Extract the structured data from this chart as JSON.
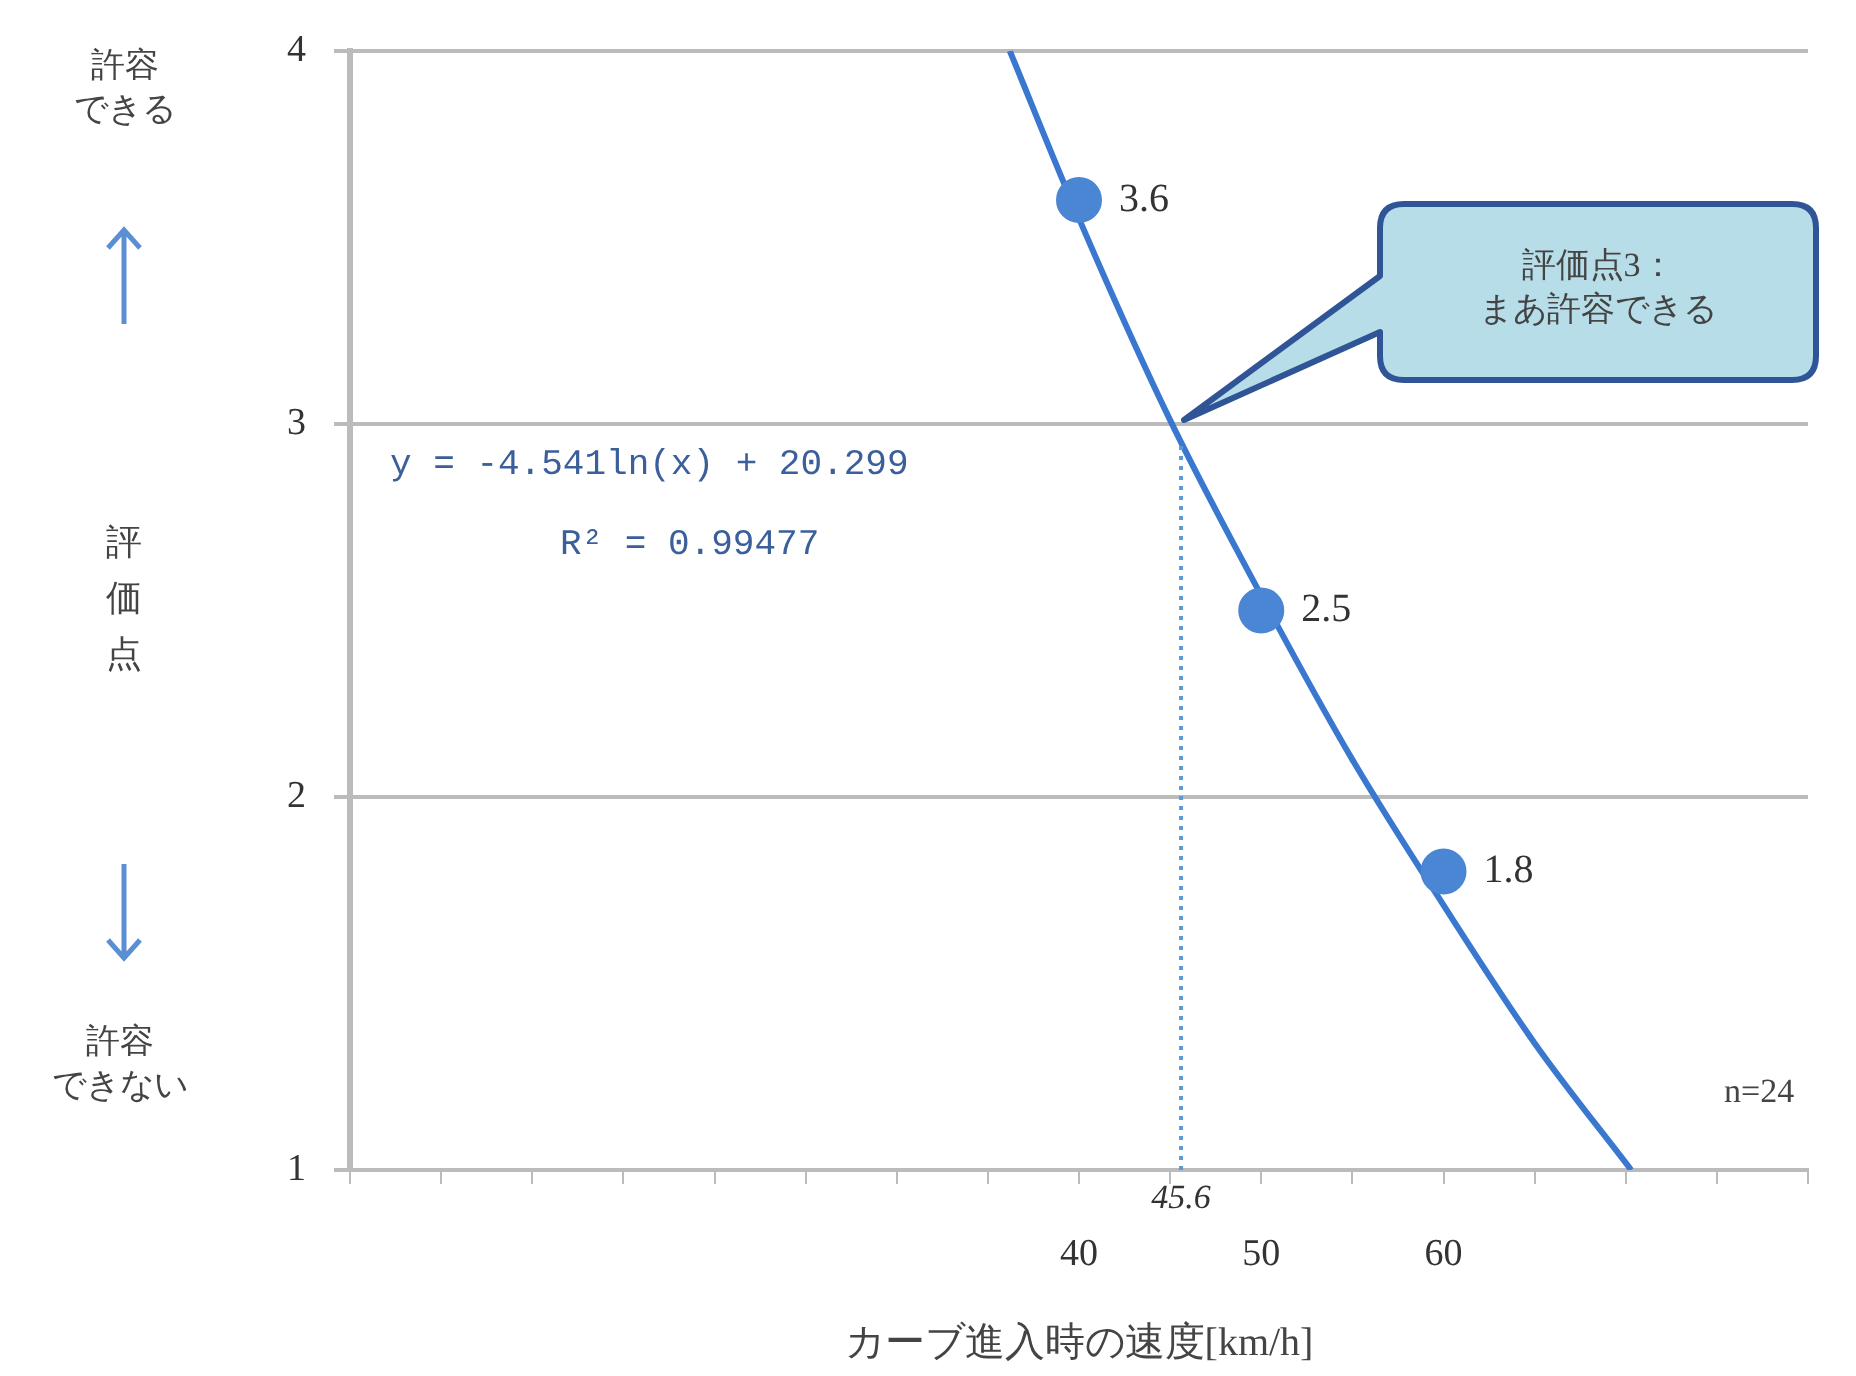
{
  "chart_data": {
    "type": "scatter",
    "xlabel": "カーブ進入時の速度[km/h]",
    "ylabel": "評価点",
    "xlim": [
      0,
      80
    ],
    "xticks": [
      {
        "value": 0,
        "label": null
      },
      {
        "value": 5,
        "label": null
      },
      {
        "value": 10,
        "label": null
      },
      {
        "value": 15,
        "label": null
      },
      {
        "value": 20,
        "label": null
      },
      {
        "value": 25,
        "label": null
      },
      {
        "value": 30,
        "label": null
      },
      {
        "value": 35,
        "label": null
      },
      40,
      {
        "value": 45,
        "label": null
      },
      50,
      {
        "value": 55,
        "label": null
      },
      60,
      {
        "value": 65,
        "label": null
      },
      {
        "value": 70,
        "label": null
      },
      {
        "value": 75,
        "label": null
      },
      {
        "value": 80,
        "label": null
      }
    ],
    "ylim": [
      1,
      4
    ],
    "yticks": [
      1,
      2,
      3,
      4
    ],
    "grid": "y",
    "legend": false,
    "series": [
      {
        "marker": "circle",
        "color": "#4a86d4",
        "x": [
          40,
          50,
          60
        ],
        "values": [
          3.6,
          2.5,
          1.8
        ],
        "value_labels": [
          "3.6",
          "2.5",
          "1.8"
        ]
      },
      {
        "type": "line",
        "marker": "none",
        "color": "#3a78d0",
        "x": [
          36.2,
          40,
          45,
          50,
          55,
          60,
          65,
          70.3
        ],
        "values": [
          4.0,
          3.55,
          3.01,
          2.54,
          2.1,
          1.71,
          1.34,
          1.0
        ]
      }
    ],
    "ref_lines": [
      {
        "axis": "x",
        "value": 45.6,
        "label": "45.6",
        "color": "#5b9bd5",
        "line_style": "dotted"
      }
    ],
    "annotations": [
      "許容できる",
      "許容できない",
      "y = -4.541ln(x) + 20.299",
      "R² = 0.99477",
      "n=24",
      "評価点3：まあ許容できる"
    ]
  }
}
